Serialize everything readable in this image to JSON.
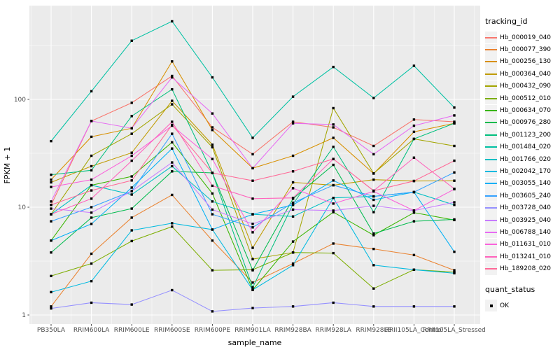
{
  "chart_data": {
    "type": "line",
    "title": "",
    "xlabel": "sample_name",
    "ylabel": "FPKM + 1",
    "y_scale": "log10",
    "y_ticks": [
      1,
      10,
      100
    ],
    "ylim": [
      1,
      740
    ],
    "grid": "on",
    "categories": [
      "PB350LA",
      "RRIM600LA",
      "RRIM600LE",
      "RRIM600SE",
      "RRIM600PE",
      "RRIM901LA",
      "RRIM928BA",
      "RRIM928LA",
      "RRIM928LE",
      "RRII105LA_Control",
      "RRII105LA_Stressed"
    ],
    "series": [
      {
        "name": "Hb_000019_040",
        "color": "#F8766D",
        "values": [
          10.5,
          63,
          93,
          165,
          55,
          31,
          62,
          55,
          37,
          65,
          62
        ]
      },
      {
        "name": "Hb_000077_390",
        "color": "#EA8331",
        "values": [
          1.2,
          3.7,
          8,
          13,
          4.9,
          2.0,
          3.0,
          4.6,
          4.1,
          3.6,
          2.6
        ]
      },
      {
        "name": "Hb_000256_130",
        "color": "#D89000",
        "values": [
          18,
          45,
          54,
          225,
          52,
          23,
          30,
          44,
          20.5,
          50,
          60
        ]
      },
      {
        "name": "Hb_000364_040",
        "color": "#C09B00",
        "values": [
          17,
          24,
          32,
          97,
          38,
          4.2,
          17,
          16,
          18,
          17.5,
          17.6
        ]
      },
      {
        "name": "Hb_000432_090",
        "color": "#A3A500",
        "values": [
          8.6,
          30,
          48,
          90,
          36,
          3.3,
          3.8,
          83,
          20.6,
          43,
          37
        ]
      },
      {
        "name": "Hb_000512_010",
        "color": "#7CAE00",
        "values": [
          2.3,
          3.0,
          4.85,
          6.6,
          2.6,
          2.63,
          3.8,
          3.75,
          1.76,
          2.63,
          2.5
        ]
      },
      {
        "name": "Hb_000634_070",
        "color": "#39B600",
        "values": [
          4.9,
          16,
          19.3,
          40,
          13.4,
          1.71,
          4.8,
          9.0,
          5.5,
          8.9,
          7.6
        ]
      },
      {
        "name": "Hb_000976_280",
        "color": "#00BB4E",
        "values": [
          3.8,
          8,
          9.7,
          21.5,
          20.8,
          2.6,
          12,
          24.7,
          5.7,
          7.4,
          7.7
        ]
      },
      {
        "name": "Hb_001123_200",
        "color": "#00BF7D",
        "values": [
          20,
          22,
          70,
          124,
          20.8,
          1.8,
          10.7,
          36.3,
          9.0,
          43,
          60
        ]
      },
      {
        "name": "Hb_001484_020",
        "color": "#00C1A3",
        "values": [
          41,
          119,
          350,
          530,
          160,
          44,
          106,
          200,
          103,
          205,
          84
        ]
      },
      {
        "name": "Hb_001766_020",
        "color": "#00BFC4",
        "values": [
          8.6,
          16,
          13.1,
          24,
          11.3,
          8.6,
          8.2,
          12.2,
          12.6,
          13.8,
          10.5
        ]
      },
      {
        "name": "Hb_002042_170",
        "color": "#00BAE0",
        "values": [
          1.63,
          2.06,
          6.1,
          7.1,
          6.2,
          1.71,
          2.9,
          12.2,
          2.9,
          2.63,
          2.44
        ]
      },
      {
        "name": "Hb_003055_140",
        "color": "#00B0F6",
        "values": [
          4.9,
          7,
          15.2,
          35,
          6.2,
          8.6,
          10.5,
          17.7,
          11.7,
          13.8,
          3.86
        ]
      },
      {
        "name": "Hb_003605_240",
        "color": "#35A2FF",
        "values": [
          7.4,
          10,
          14.1,
          48,
          8.6,
          6.5,
          11,
          16,
          12.6,
          13.8,
          21
        ]
      },
      {
        "name": "Hb_003728_040",
        "color": "#9590FF",
        "values": [
          1.15,
          1.3,
          1.25,
          1.7,
          1.08,
          1.16,
          1.2,
          1.3,
          1.2,
          1.2,
          1.2
        ]
      },
      {
        "name": "Hb_003925_040",
        "color": "#C77CFF",
        "values": [
          9.7,
          8.9,
          14.1,
          26,
          9.5,
          7.0,
          9.5,
          9.3,
          10.3,
          9.3,
          11.1
        ]
      },
      {
        "name": "Hb_006788_140",
        "color": "#E76BF3",
        "values": [
          11.3,
          63,
          54,
          160,
          74,
          23,
          60,
          58.5,
          31,
          57,
          71
        ]
      },
      {
        "name": "Hb_011631_010",
        "color": "#FA62DB",
        "values": [
          15.4,
          18,
          30,
          57,
          28,
          5.85,
          15,
          10.8,
          14,
          9.3,
          14.7
        ]
      },
      {
        "name": "Hb_013241_010",
        "color": "#FF62BC",
        "values": [
          8.6,
          12,
          27,
          62,
          15.8,
          12,
          12.2,
          28,
          14.2,
          28.8,
          14.8
        ]
      },
      {
        "name": "Hb_189208_020",
        "color": "#FF6A98",
        "values": [
          10.5,
          14.3,
          17.7,
          58,
          20.8,
          17.6,
          21.5,
          28,
          14.2,
          17.5,
          27
        ]
      }
    ],
    "legend": {
      "title": "tracking_id",
      "position": "right"
    },
    "quant_status": {
      "title": "quant_status",
      "label": "OK"
    }
  },
  "style": {
    "panel_bg": "#EBEBEB",
    "grid_color": "#FFFFFF",
    "tick_label_color": "#4D4D4D",
    "axis_title_color": "#000000",
    "point_color": "#000000",
    "legend_key_bg": "#F2F2F2"
  }
}
